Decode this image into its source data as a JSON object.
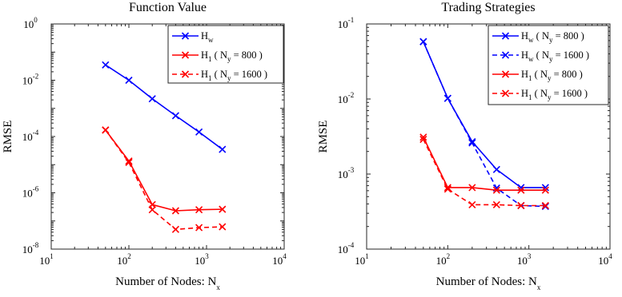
{
  "chart_data": [
    {
      "type": "line",
      "title": "Function Value",
      "xlabel": "Number of Nodes: N",
      "xlabel_sub": "x",
      "ylabel": "RMSE",
      "xscale": "log",
      "yscale": "log",
      "xlim": [
        10,
        10000
      ],
      "ylim": [
        1e-08,
        1
      ],
      "xticks": [
        {
          "base": "10",
          "exp": "1"
        },
        {
          "base": "10",
          "exp": "2"
        },
        {
          "base": "10",
          "exp": "3"
        },
        {
          "base": "10",
          "exp": "4"
        }
      ],
      "yticks": [
        {
          "base": "10",
          "exp": "-8"
        },
        {
          "base": "10",
          "exp": "-6"
        },
        {
          "base": "10",
          "exp": "-4"
        },
        {
          "base": "10",
          "exp": "-2"
        },
        {
          "base": "10",
          "exp": "0"
        }
      ],
      "grid": false,
      "legend_position": "top-right",
      "series": [
        {
          "label": "H",
          "sub": "w",
          "suffix": "",
          "color": "#0000ff",
          "dash": "solid",
          "marker": "x",
          "x": [
            50,
            100,
            200,
            400,
            800,
            1600
          ],
          "y": [
            0.035,
            0.01,
            0.0022,
            0.00055,
            0.000145,
            3.5e-05
          ]
        },
        {
          "label": "H",
          "sub": "1",
          "suffix": " ( N",
          "suffix_sub": "y",
          "suffix_end": " = 800 )",
          "color": "#ff0000",
          "dash": "solid",
          "marker": "x",
          "x": [
            50,
            100,
            200,
            400,
            800,
            1600
          ],
          "y": [
            0.00017,
            1.35e-05,
            3.8e-07,
            2.3e-07,
            2.5e-07,
            2.6e-07
          ]
        },
        {
          "label": "H",
          "sub": "1",
          "suffix": " ( N",
          "suffix_sub": "y",
          "suffix_end": " = 1600 )",
          "color": "#ff0000",
          "dash": "dashed",
          "marker": "x",
          "x": [
            50,
            100,
            200,
            400,
            800,
            1600
          ],
          "y": [
            0.00017,
            1.2e-05,
            2.5e-07,
            5e-08,
            5.8e-08,
            6.2e-08
          ]
        }
      ]
    },
    {
      "type": "line",
      "title": "Trading Strategies",
      "xlabel": "Number of Nodes: N",
      "xlabel_sub": "x",
      "ylabel": "RMSE",
      "xscale": "log",
      "yscale": "log",
      "xlim": [
        10,
        10000
      ],
      "ylim": [
        0.0001,
        0.1
      ],
      "xticks": [
        {
          "base": "10",
          "exp": "1"
        },
        {
          "base": "10",
          "exp": "2"
        },
        {
          "base": "10",
          "exp": "3"
        },
        {
          "base": "10",
          "exp": "4"
        }
      ],
      "yticks": [
        {
          "base": "10",
          "exp": "-4"
        },
        {
          "base": "10",
          "exp": "-3"
        },
        {
          "base": "10",
          "exp": "-2"
        },
        {
          "base": "10",
          "exp": "-1"
        }
      ],
      "grid": false,
      "legend_position": "top-right",
      "series": [
        {
          "label": "H",
          "sub": "w",
          "suffix": " ( N",
          "suffix_sub": "y",
          "suffix_end": " = 800 )",
          "color": "#0000ff",
          "dash": "solid",
          "marker": "x",
          "x": [
            50,
            100,
            200,
            400,
            800,
            1600
          ],
          "y": [
            0.058,
            0.0102,
            0.0027,
            0.00115,
            0.00066,
            0.00066
          ]
        },
        {
          "label": "H",
          "sub": "w",
          "suffix": " ( N",
          "suffix_sub": "y",
          "suffix_end": " = 1600 )",
          "color": "#0000ff",
          "dash": "dashed",
          "marker": "x",
          "x": [
            50,
            100,
            200,
            400,
            800,
            1600
          ],
          "y": [
            0.058,
            0.0102,
            0.0026,
            0.00065,
            0.00038,
            0.00037
          ]
        },
        {
          "label": "H",
          "sub": "1",
          "suffix": " ( N",
          "suffix_sub": "y",
          "suffix_end": " = 800 )",
          "color": "#ff0000",
          "dash": "solid",
          "marker": "x",
          "x": [
            50,
            100,
            200,
            400,
            800,
            1600
          ],
          "y": [
            0.0031,
            0.00066,
            0.00066,
            0.00061,
            0.00061,
            0.00061
          ]
        },
        {
          "label": "H",
          "sub": "1",
          "suffix": " ( N",
          "suffix_sub": "y",
          "suffix_end": " = 1600 )",
          "color": "#ff0000",
          "dash": "dashed",
          "marker": "x",
          "x": [
            50,
            100,
            200,
            400,
            800,
            1600
          ],
          "y": [
            0.0029,
            0.00063,
            0.00039,
            0.00039,
            0.00038,
            0.00038
          ]
        }
      ]
    }
  ]
}
